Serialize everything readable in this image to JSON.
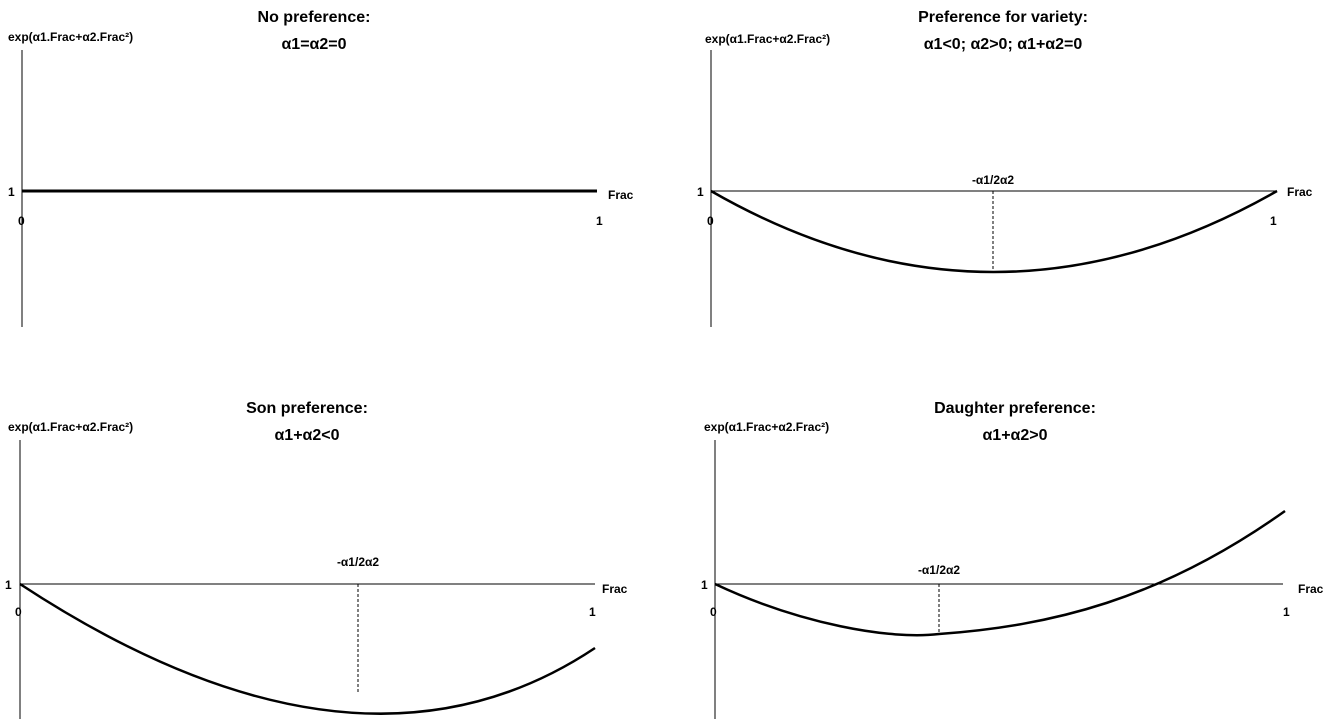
{
  "panels": [
    {
      "title_line1": "No preference:",
      "title_line2": "α1=α2=0",
      "y_label": "exp(α1.Frac+α2.Frac²)",
      "y_tick": "1",
      "x_label": "Frac",
      "x_tick_start": "0",
      "x_tick_end": "1",
      "curve": "flat at 1"
    },
    {
      "title_line1": "Preference for variety:",
      "title_line2": "α1<0; α2>0; α1+α2=0",
      "y_label": "exp(α1.Frac+α2.Frac²)",
      "y_tick": "1",
      "x_label": "Frac",
      "x_tick_start": "0",
      "x_tick_end": "1",
      "vertex_label": "-α1/2α2",
      "curve": "U-shaped, ends at 1"
    },
    {
      "title_line1": "Son preference:",
      "title_line2": "α1+α2<0",
      "y_label": "exp(α1.Frac+α2.Frac²)",
      "y_tick": "1",
      "x_label": "Frac",
      "x_tick_start": "0",
      "x_tick_end": "1",
      "vertex_label": "-α1/2α2",
      "curve": "U-shaped, ends below 1"
    },
    {
      "title_line1": "Daughter preference:",
      "title_line2": "α1+α2>0",
      "y_label": "exp(α1.Frac+α2.Frac²)",
      "y_tick": "1",
      "x_label": "Frac",
      "x_tick_start": "0",
      "x_tick_end": "1",
      "vertex_label": "-α1/2α2",
      "curve": "U-shaped, ends above 1"
    }
  ]
}
